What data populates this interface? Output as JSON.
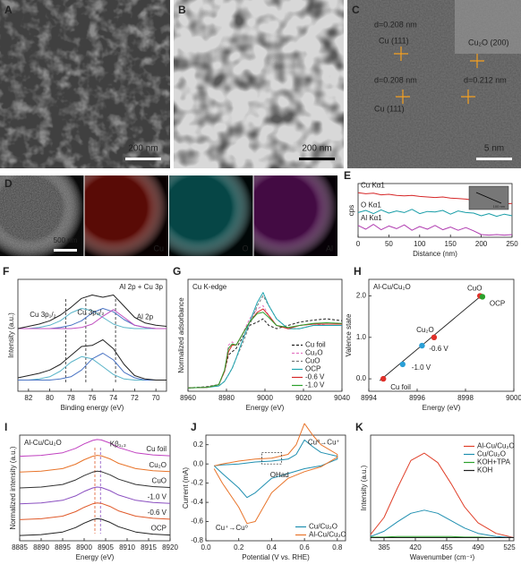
{
  "images": [
    {
      "letter": "A",
      "scale_bar": "200 nm"
    },
    {
      "letter": "B",
      "scale_bar": "200 nm"
    },
    {
      "letter": "C",
      "scale_bar": "5 nm",
      "annotations": [
        "d=0.208 nm",
        "Cu (111)",
        "Cu₂O (200)",
        "d=0.208 nm",
        "Cu (111)",
        "d=0.212 nm"
      ]
    }
  ],
  "eds": {
    "letter": "D",
    "scale_bar": "500 nm",
    "maps": [
      "Cu",
      "O",
      "Al"
    ]
  },
  "chart_data": [
    {
      "letter": "E",
      "type": "line",
      "xlabel": "Distance (nm)",
      "ylabel": "cps",
      "inset_scale_bar": "100 nm",
      "xlim": [
        0,
        250
      ],
      "ylim": [
        0,
        10
      ],
      "xticks": [
        0,
        50,
        100,
        150,
        200,
        250
      ],
      "legend": "inline",
      "x": [
        0,
        12.5,
        25,
        37.5,
        50,
        62.5,
        75,
        87.5,
        100,
        112.5,
        125,
        137.5,
        150,
        162.5,
        175,
        187.5,
        200,
        212.5,
        225,
        237.5,
        250
      ],
      "series": [
        {
          "name": "Cu Kα1",
          "color": "#d62728",
          "values": [
            8.3,
            8.1,
            8.2,
            7.9,
            8.0,
            7.8,
            7.7,
            7.8,
            7.6,
            7.5,
            7.4,
            7.5,
            7.3,
            7.2,
            7.1,
            6.9,
            6.3,
            6.2,
            6.3,
            6.2,
            6.3
          ]
        },
        {
          "name": "O Kα1",
          "color": "#1a9ea8",
          "values": [
            4.6,
            5.0,
            4.4,
            5.1,
            4.5,
            4.9,
            4.6,
            5.2,
            4.4,
            4.8,
            4.7,
            5.0,
            4.3,
            4.9,
            4.6,
            4.5,
            4.0,
            4.4,
            3.9,
            4.3,
            4.0
          ]
        },
        {
          "name": "Al Kα1",
          "color": "#b03cb0",
          "values": [
            2.2,
            1.5,
            2.4,
            1.4,
            2.1,
            1.6,
            2.3,
            1.3,
            2.0,
            1.5,
            2.2,
            1.4,
            1.9,
            1.3,
            1.8,
            1.2,
            0.5,
            0.4,
            0.5,
            0.4,
            0.5
          ]
        }
      ]
    },
    {
      "letter": "F",
      "type": "line",
      "title": "Al 2p + Cu 3p",
      "xlabel": "Binding energy (eV)",
      "ylabel": "Intensity (a.u.)",
      "xlim": [
        83,
        69
      ],
      "ylim": [
        0,
        10
      ],
      "xticks": [
        82,
        80,
        78,
        76,
        74,
        72,
        70
      ],
      "annotations": [
        "Cu 3p₁/₂",
        "Cu 3p₃/₂",
        "Al 2p"
      ],
      "vlines": [
        78.5,
        76.6,
        73.8
      ],
      "x": [
        83,
        82,
        81,
        80,
        79,
        78,
        77,
        76,
        75,
        74,
        73,
        72,
        71,
        70,
        69
      ],
      "series": [
        {
          "color": "#5ab4c8",
          "values": [
            5.6,
            5.6,
            5.7,
            5.9,
            6.3,
            7.0,
            7.4,
            7.2,
            6.6,
            6.0,
            5.7,
            5.6,
            5.6,
            5.6,
            5.6
          ]
        },
        {
          "color": "#4a74c4",
          "values": [
            5.6,
            5.6,
            5.6,
            5.6,
            5.7,
            5.9,
            6.3,
            7.0,
            7.4,
            7.1,
            6.4,
            5.9,
            5.7,
            5.6,
            5.6
          ]
        },
        {
          "color": "#c050c0",
          "values": [
            5.6,
            5.6,
            5.6,
            5.6,
            5.6,
            5.6,
            5.7,
            6.0,
            6.7,
            7.3,
            6.6,
            5.9,
            5.7,
            5.6,
            5.6
          ]
        },
        {
          "color": "#5ab4c8",
          "values": [
            1.0,
            1.0,
            1.1,
            1.3,
            1.8,
            2.6,
            3.1,
            2.9,
            2.2,
            1.5,
            1.1,
            1.0,
            1.0,
            1.0,
            1.0
          ]
        },
        {
          "color": "#4a74c4",
          "values": [
            1.0,
            1.0,
            1.0,
            1.0,
            1.1,
            1.3,
            1.9,
            2.9,
            3.4,
            2.8,
            1.7,
            1.2,
            1.0,
            1.0,
            1.0
          ]
        },
        {
          "color": "#222222",
          "values": [
            5.6,
            5.8,
            6.0,
            6.3,
            6.8,
            7.5,
            8.3,
            8.6,
            8.4,
            8.6,
            7.6,
            6.6,
            6.1,
            5.9,
            5.8
          ]
        },
        {
          "color": "#222222",
          "values": [
            1.2,
            1.4,
            1.6,
            1.9,
            2.4,
            3.2,
            4.0,
            4.1,
            4.6,
            3.8,
            2.4,
            1.4,
            1.1,
            1.0,
            1.0
          ]
        }
      ]
    },
    {
      "letter": "G",
      "type": "line",
      "title": "Cu K-edge",
      "xlabel": "Energy (eV)",
      "ylabel": "Normalized adsorbance",
      "xlim": [
        8960,
        9040
      ],
      "ylim": [
        0,
        1.7
      ],
      "xticks": [
        8960,
        8980,
        9000,
        9020,
        9040
      ],
      "legend": "lower right",
      "x": [
        8960,
        8970,
        8976,
        8979,
        8981,
        8983,
        8985,
        8988,
        8992,
        8996,
        8999,
        9002,
        9006,
        9012,
        9018,
        9025,
        9032,
        9040
      ],
      "series": [
        {
          "name": "Cu foil",
          "color": "#222222",
          "dash": true,
          "values": [
            0.05,
            0.07,
            0.1,
            0.3,
            0.55,
            0.6,
            0.65,
            0.8,
            1.0,
            1.05,
            1.1,
            1.0,
            0.95,
            1.0,
            1.05,
            1.08,
            1.1,
            1.07
          ]
        },
        {
          "name": "Cu₂O",
          "color": "#e377c2",
          "dash": true,
          "values": [
            0.05,
            0.06,
            0.1,
            0.3,
            0.7,
            0.75,
            0.7,
            0.85,
            1.1,
            1.25,
            1.3,
            1.15,
            1.0,
            0.95,
            1.0,
            1.02,
            1.0,
            1.0
          ]
        },
        {
          "name": "CuO",
          "color": "#777777",
          "dash": true,
          "values": [
            0.05,
            0.06,
            0.08,
            0.15,
            0.25,
            0.35,
            0.5,
            0.7,
            1.0,
            1.3,
            1.45,
            1.3,
            1.1,
            0.95,
            0.95,
            1.0,
            1.0,
            1.0
          ]
        },
        {
          "name": "OCP",
          "color": "#1fa5b0",
          "values": [
            0.05,
            0.06,
            0.08,
            0.15,
            0.25,
            0.35,
            0.5,
            0.75,
            1.05,
            1.35,
            1.5,
            1.3,
            1.1,
            0.95,
            0.95,
            1.0,
            1.0,
            1.0
          ]
        },
        {
          "name": "-0.6 V",
          "color": "#d62728",
          "values": [
            0.05,
            0.06,
            0.1,
            0.3,
            0.6,
            0.7,
            0.7,
            0.85,
            1.05,
            1.2,
            1.25,
            1.15,
            1.0,
            0.95,
            1.0,
            1.02,
            1.02,
            1.02
          ]
        },
        {
          "name": "-1.0 V",
          "color": "#2ca02c",
          "values": [
            0.05,
            0.06,
            0.1,
            0.32,
            0.65,
            0.72,
            0.7,
            0.85,
            1.05,
            1.18,
            1.2,
            1.12,
            1.0,
            0.97,
            1.0,
            1.03,
            1.04,
            1.03
          ]
        }
      ]
    },
    {
      "letter": "H",
      "type": "scatter",
      "title": "Al-Cu/Cu₂O",
      "xlabel": "Energy (eV)",
      "ylabel": "Valence state",
      "xlim": [
        8994,
        9000
      ],
      "ylim": [
        -0.3,
        2.4
      ],
      "xticks": [
        8994,
        8996,
        8998,
        9000
      ],
      "yticks": [
        {
          "value": 0,
          "label": "0.0"
        },
        {
          "value": 1,
          "label": "1.0"
        },
        {
          "value": 2,
          "label": "2.0"
        }
      ],
      "categories": [
        "Cu foil",
        "-1.0 V",
        "-0.6 V",
        "Cu₂O",
        "CuO",
        "OCP"
      ],
      "x": [
        8994.6,
        8995.4,
        8996.2,
        8996.7,
        8998.6,
        8998.7
      ],
      "values": [
        0,
        0.35,
        0.8,
        1.0,
        2.0,
        1.98
      ],
      "colors": [
        "#e0302a",
        "#2a9fd6",
        "#2a9fd6",
        "#e0302a",
        "#e0302a",
        "#2ca02c"
      ]
    },
    {
      "letter": "I",
      "type": "line",
      "title": "Al-Cu/Cu₂O",
      "xlabel": "Energy (eV)",
      "ylabel": "Normalized intensity (a.u.)",
      "xlim": [
        8885,
        8920
      ],
      "ylim": [
        0,
        12
      ],
      "xticks": [
        8885,
        8890,
        8895,
        8900,
        8905,
        8910,
        8915,
        8920
      ],
      "legend": "inline right",
      "annotations": [
        "Kβ₁,₃"
      ],
      "vlines": [
        8902.5,
        8903.8
      ],
      "x": [
        8885,
        8890,
        8895,
        8898,
        8900,
        8902,
        8903,
        8904,
        8906,
        8908,
        8912,
        8916,
        8920
      ],
      "series": [
        {
          "name": "Cu foil",
          "color": "#c040c0",
          "values": [
            9.6,
            9.7,
            10.0,
            10.5,
            11.0,
            11.4,
            11.5,
            11.45,
            11.1,
            10.6,
            10.0,
            9.75,
            9.65
          ]
        },
        {
          "name": "Cu₂O",
          "color": "#e8742a",
          "values": [
            7.8,
            7.9,
            8.2,
            8.7,
            9.2,
            9.6,
            9.7,
            9.65,
            9.3,
            8.8,
            8.2,
            7.95,
            7.85
          ]
        },
        {
          "name": "CuO",
          "color": "#333333",
          "values": [
            6.0,
            6.1,
            6.4,
            6.9,
            7.4,
            7.8,
            7.9,
            7.85,
            7.5,
            7.0,
            6.4,
            6.15,
            6.05
          ]
        },
        {
          "name": "-1.0 V",
          "color": "#8a4fc0",
          "values": [
            4.2,
            4.3,
            4.6,
            5.1,
            5.6,
            6.0,
            6.1,
            6.05,
            5.7,
            5.2,
            4.6,
            4.35,
            4.25
          ]
        },
        {
          "name": "-0.6 V",
          "color": "#e05a2a",
          "values": [
            2.4,
            2.5,
            2.8,
            3.3,
            3.8,
            4.2,
            4.3,
            4.25,
            3.9,
            3.4,
            2.8,
            2.55,
            2.45
          ]
        },
        {
          "name": "OCP",
          "color": "#222222",
          "values": [
            0.6,
            0.7,
            1.0,
            1.5,
            2.0,
            2.4,
            2.5,
            2.45,
            2.1,
            1.6,
            1.0,
            0.75,
            0.65
          ]
        }
      ]
    },
    {
      "letter": "J",
      "type": "line",
      "xlabel": "Potential (V vs. RHE)",
      "ylabel": "Current (mA)",
      "xlim": [
        0,
        0.85
      ],
      "ylim": [
        -0.8,
        0.3
      ],
      "xticks": [
        {
          "value": 0,
          "label": "0.0"
        },
        0.2,
        0.4,
        0.6,
        0.8
      ],
      "yticks": [
        0.2,
        {
          "value": 0,
          "label": "0.0"
        },
        -0.2,
        -0.4,
        -0.6,
        -0.8
      ],
      "legend": "lower right",
      "annotations": [
        "Cu⁰→Cu⁺",
        "OHad",
        "Cu⁺→Cu⁰"
      ],
      "x": [
        0.05,
        0.1,
        0.2,
        0.3,
        0.4,
        0.5,
        0.55,
        0.6,
        0.65,
        0.7,
        0.8,
        0.8,
        0.7,
        0.6,
        0.5,
        0.4,
        0.3,
        0.25,
        0.2,
        0.1,
        0.05
      ],
      "series": [
        {
          "name": "Cu/Cu₂O",
          "color": "#1f8fb0",
          "values": [
            -0.02,
            -0.01,
            0.0,
            0.02,
            0.03,
            0.05,
            0.1,
            0.25,
            0.18,
            0.12,
            0.08,
            0.05,
            -0.02,
            -0.05,
            -0.1,
            -0.15,
            -0.3,
            -0.35,
            -0.25,
            -0.1,
            -0.02
          ]
        },
        {
          "name": "Al-Cu/Cu₂O",
          "color": "#e8742a",
          "values": [
            -0.02,
            0.0,
            0.03,
            0.05,
            0.06,
            0.1,
            0.2,
            0.42,
            0.3,
            0.2,
            0.1,
            0.07,
            -0.03,
            -0.08,
            -0.15,
            -0.3,
            -0.6,
            -0.62,
            -0.45,
            -0.2,
            -0.05
          ]
        }
      ]
    },
    {
      "letter": "K",
      "type": "line",
      "xlabel": "Wavenumber (cm⁻¹)",
      "ylabel": "Intensity (a.u.)",
      "xlim": [
        370,
        530
      ],
      "ylim": [
        0,
        10
      ],
      "xticks": [
        385,
        420,
        455,
        490,
        525
      ],
      "legend": "upper right",
      "x": [
        370,
        385,
        400,
        415,
        430,
        445,
        460,
        475,
        490,
        510,
        530
      ],
      "series": [
        {
          "name": "Al-Cu/Cu₂O",
          "color": "#e0402a",
          "values": [
            0.6,
            2.2,
            5.0,
            7.6,
            8.3,
            7.4,
            5.4,
            3.2,
            1.7,
            0.7,
            0.3
          ]
        },
        {
          "name": "Cu/Cu₂O",
          "color": "#1f8fb0",
          "values": [
            0.4,
            0.9,
            1.8,
            2.6,
            2.9,
            2.6,
            1.9,
            1.2,
            0.7,
            0.4,
            0.3
          ]
        },
        {
          "name": "KOH+TPA",
          "color": "#2ca02c",
          "values": [
            0.35,
            0.35,
            0.4,
            0.4,
            0.4,
            0.4,
            0.4,
            0.35,
            0.35,
            0.3,
            0.3
          ]
        },
        {
          "name": "KOH",
          "color": "#222222",
          "values": [
            0.3,
            0.3,
            0.3,
            0.3,
            0.3,
            0.3,
            0.3,
            0.3,
            0.3,
            0.3,
            0.3
          ]
        }
      ]
    }
  ]
}
